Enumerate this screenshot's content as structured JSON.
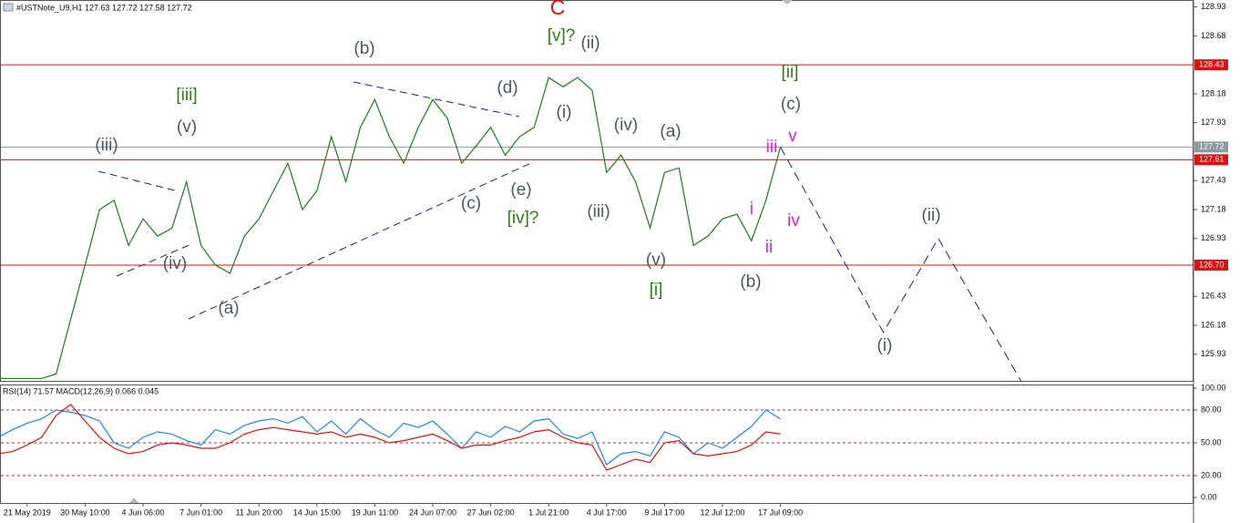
{
  "chart_data": [
    {
      "type": "line",
      "title": "#USTNote_U9,H1  127.63 127.72 127.58 127.72",
      "categories": [
        null,
        null,
        "21 May 2019",
        null,
        null,
        null,
        "30 May 10:00",
        null,
        null,
        null,
        "4 Jun 06:00",
        null,
        null,
        null,
        "7 Jun 01:00",
        null,
        null,
        null,
        "11 Jun 20:00",
        null,
        null,
        null,
        "14 Jun 15:00",
        null,
        null,
        null,
        "19 Jun 11:00",
        null,
        null,
        null,
        "24 Jun 07:00",
        null,
        null,
        null,
        "27 Jun 02:00",
        null,
        null,
        null,
        "1 Jul 21:00",
        null,
        null,
        null,
        "4 Jul 17:00",
        null,
        null,
        null,
        "9 Jul 17:00",
        null,
        null,
        null,
        "12 Jul 12:00",
        null,
        null,
        null,
        "17 Jul 09:00"
      ],
      "series": [
        {
          "color": "#1f7a1f",
          "values": [
            125.72,
            125.72,
            125.72,
            125.72,
            125.76,
            126.23,
            126.7,
            127.18,
            127.26,
            126.87,
            127.1,
            126.95,
            127.02,
            127.42,
            126.87,
            126.7,
            126.63,
            126.95,
            127.1,
            127.34,
            127.58,
            127.18,
            127.34,
            127.81,
            127.42,
            127.89,
            128.13,
            127.81,
            127.58,
            127.89,
            128.13,
            127.97,
            127.58,
            127.73,
            127.89,
            127.65,
            127.81,
            127.89,
            128.32,
            128.24,
            128.32,
            128.21,
            127.5,
            127.65,
            127.42,
            127.02,
            127.5,
            127.54,
            126.87,
            126.95,
            127.1,
            127.14,
            126.91,
            127.26,
            127.72
          ]
        }
      ],
      "projection": {
        "color": "#1a237e",
        "x": [
          54,
          61.1,
          64.9,
          70.6
        ],
        "values": [
          127.72,
          126.12,
          126.93,
          125.7
        ]
      },
      "ylim": [
        125.7,
        128.99
      ],
      "yticks": [
        128.93,
        128.68,
        128.18,
        127.93,
        127.43,
        127.18,
        126.93,
        126.43,
        126.18,
        125.93
      ],
      "levels": [
        {
          "value": 128.43,
          "label": "128.43",
          "color": "#e01010"
        },
        {
          "value": 127.72,
          "label": "127.72",
          "color": "#8c9aa0"
        },
        {
          "value": 127.61,
          "label": "127.61",
          "color": "#e01010"
        },
        {
          "value": 126.7,
          "label": "126.70",
          "color": "#e01010"
        }
      ],
      "annotations": [
        {
          "text": "C",
          "color": "#e01010"
        },
        {
          "text": "[v]?",
          "color": "#2e7d12"
        },
        {
          "text": "(ii)",
          "color": "#4a5a60"
        },
        {
          "text": "(b)",
          "color": "#4a5a60"
        },
        {
          "text": "[iii]",
          "color": "#2e7d12"
        },
        {
          "text": "(v)",
          "color": "#4a5a60"
        },
        {
          "text": "(iii)",
          "color": "#4a5a60"
        },
        {
          "text": "(d)",
          "color": "#4a5a60"
        },
        {
          "text": "(i)",
          "color": "#4a5a60"
        },
        {
          "text": "(iv)",
          "color": "#4a5a60"
        },
        {
          "text": "(a)",
          "color": "#4a5a60"
        },
        {
          "text": "[ii]",
          "color": "#2e7d12"
        },
        {
          "text": "(c)",
          "color": "#4a5a60"
        },
        {
          "text": "iii",
          "color": "#e020e0"
        },
        {
          "text": "v",
          "color": "#e020e0"
        },
        {
          "text": "i",
          "color": "#e020e0"
        },
        {
          "text": "iv",
          "color": "#e020e0"
        },
        {
          "text": "ii",
          "color": "#e020e0"
        },
        {
          "text": "(iv)",
          "color": "#4a5a60"
        },
        {
          "text": "(a)",
          "color": "#4a5a60"
        },
        {
          "text": "(c)",
          "color": "#4a5a60"
        },
        {
          "text": "(e)",
          "color": "#4a5a60"
        },
        {
          "text": "[iv]?",
          "color": "#2e7d12"
        },
        {
          "text": "(iii)",
          "color": "#4a5a60"
        },
        {
          "text": "(v)",
          "color": "#4a5a60"
        },
        {
          "text": "[i]",
          "color": "#2e7d12"
        },
        {
          "text": "(b)",
          "color": "#4a5a60"
        },
        {
          "text": "(ii)",
          "color": "#4a5a60"
        },
        {
          "text": "(i)",
          "color": "#4a5a60"
        }
      ]
    },
    {
      "type": "line",
      "title": "RSI(14) 71.57 MACD(12,26,9) 0.066 0.045",
      "series": [
        {
          "color": "#1e88e5",
          "values": [
            55,
            62,
            68,
            72,
            80,
            78,
            75,
            70,
            50,
            45,
            55,
            60,
            58,
            52,
            48,
            62,
            58,
            66,
            70,
            72,
            68,
            74,
            60,
            70,
            58,
            72,
            62,
            55,
            68,
            64,
            70,
            58,
            45,
            60,
            55,
            65,
            60,
            70,
            72,
            58,
            54,
            60,
            30,
            40,
            42,
            38,
            60,
            55,
            40,
            50,
            45,
            55,
            65,
            80,
            72
          ]
        },
        {
          "color": "#e01010",
          "values": [
            40,
            42,
            48,
            55,
            75,
            85,
            70,
            55,
            45,
            40,
            42,
            48,
            50,
            48,
            45,
            45,
            50,
            58,
            62,
            64,
            62,
            60,
            58,
            60,
            55,
            58,
            55,
            50,
            52,
            55,
            58,
            52,
            45,
            48,
            48,
            52,
            55,
            60,
            62,
            55,
            50,
            48,
            25,
            30,
            35,
            32,
            50,
            52,
            40,
            38,
            40,
            42,
            48,
            60,
            58
          ]
        }
      ],
      "ylim": [
        0,
        100
      ],
      "yticks": [
        {
          "value": 100,
          "label": "100.00"
        },
        {
          "value": 80,
          "label": "80.00"
        },
        {
          "value": 50,
          "label": "50.00"
        },
        {
          "value": 20,
          "label": "20.00"
        },
        {
          "value": 0,
          "label": "0.00"
        }
      ]
    }
  ]
}
